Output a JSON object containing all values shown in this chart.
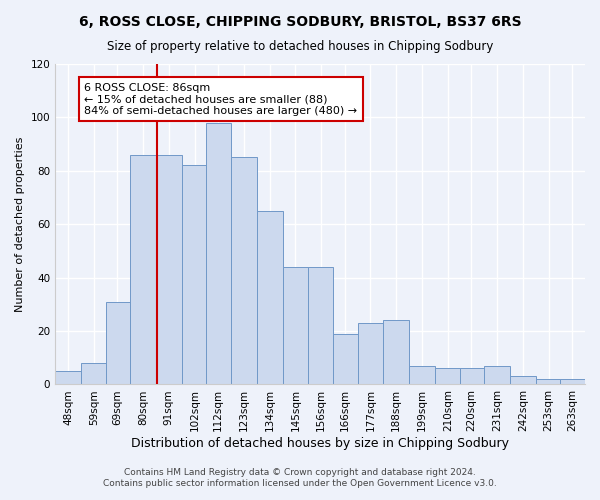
{
  "title": "6, ROSS CLOSE, CHIPPING SODBURY, BRISTOL, BS37 6RS",
  "subtitle": "Size of property relative to detached houses in Chipping Sodbury",
  "xlabel": "Distribution of detached houses by size in Chipping Sodbury",
  "ylabel": "Number of detached properties",
  "bin_labels": [
    "48sqm",
    "59sqm",
    "69sqm",
    "80sqm",
    "91sqm",
    "102sqm",
    "112sqm",
    "123sqm",
    "134sqm",
    "145sqm",
    "156sqm",
    "166sqm",
    "177sqm",
    "188sqm",
    "199sqm",
    "210sqm",
    "220sqm",
    "231sqm",
    "242sqm",
    "253sqm",
    "263sqm"
  ],
  "bar_heights": [
    5,
    8,
    31,
    86,
    86,
    82,
    98,
    85,
    65,
    44,
    44,
    19,
    23,
    24,
    7,
    6,
    6,
    7,
    3,
    2,
    2
  ],
  "bin_edges": [
    42.5,
    53.5,
    64.0,
    74.5,
    85.5,
    96.5,
    107.0,
    117.5,
    128.5,
    139.5,
    150.5,
    161.0,
    171.5,
    182.5,
    193.5,
    204.5,
    215.0,
    225.5,
    236.5,
    247.5,
    258.0,
    268.5
  ],
  "tick_positions": [
    48,
    59,
    69,
    80,
    91,
    102,
    112,
    123,
    134,
    145,
    156,
    166,
    177,
    188,
    199,
    210,
    220,
    231,
    242,
    253,
    263
  ],
  "bar_color": "#ccd9ee",
  "bar_edge_color": "#7098c8",
  "vline_x": 86,
  "vline_color": "#cc0000",
  "annotation_text": "6 ROSS CLOSE: 86sqm\n← 15% of detached houses are smaller (88)\n84% of semi-detached houses are larger (480) →",
  "annotation_box_color": "#ffffff",
  "annotation_box_edge": "#cc0000",
  "ylim": [
    0,
    120
  ],
  "yticks": [
    0,
    20,
    40,
    60,
    80,
    100,
    120
  ],
  "footer1": "Contains HM Land Registry data © Crown copyright and database right 2024.",
  "footer2": "Contains public sector information licensed under the Open Government Licence v3.0.",
  "bg_color": "#eef2fa",
  "grid_color": "#ffffff",
  "title_fontsize": 10,
  "subtitle_fontsize": 8.5,
  "ylabel_fontsize": 8,
  "xlabel_fontsize": 9,
  "tick_fontsize": 7.5,
  "annotation_fontsize": 8,
  "footer_fontsize": 6.5
}
